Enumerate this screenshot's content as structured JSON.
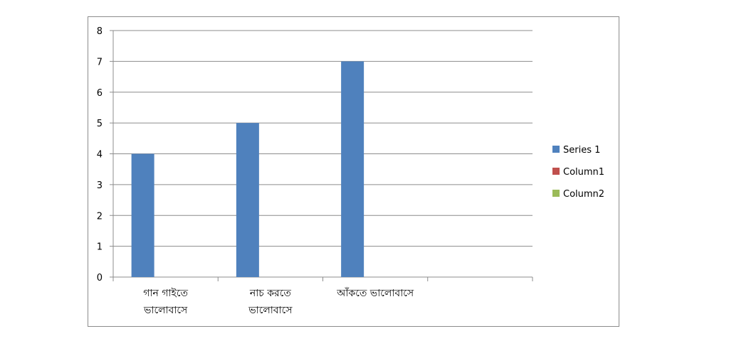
{
  "chart_data": {
    "type": "bar",
    "categories": [
      [
        "গান গাইতে",
        "ভালোবাসে"
      ],
      [
        "নাচ করতে",
        "ভালোবাসে"
      ],
      [
        "আঁকতে ভালোবাসে"
      ],
      [
        ""
      ]
    ],
    "series": [
      {
        "name": "Series 1",
        "values": [
          4,
          5,
          7,
          null
        ],
        "color": "#4f81bd"
      },
      {
        "name": "Column1",
        "values": [
          null,
          null,
          null,
          null
        ],
        "color": "#c0504d"
      },
      {
        "name": "Column2",
        "values": [
          null,
          null,
          null,
          null
        ],
        "color": "#9bbb59"
      }
    ],
    "ylim": [
      0,
      8
    ],
    "yticks": [
      0,
      1,
      2,
      3,
      4,
      5,
      6,
      7,
      8
    ],
    "grid": true,
    "legend_position": "right",
    "title": "",
    "xlabel": "",
    "ylabel": ""
  }
}
